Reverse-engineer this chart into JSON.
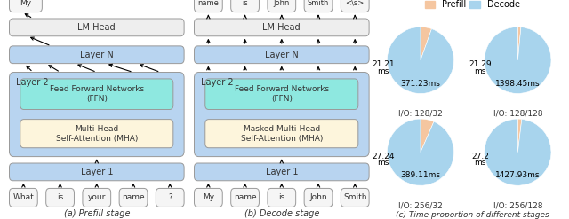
{
  "title_c": "(c) Time proportion of different stages",
  "title_a": "(a) Prefill stage",
  "title_b": "(b) Decode stage",
  "legend_prefill": "Prefill",
  "legend_decode": "Decode",
  "color_prefill": "#f5c6a0",
  "color_decode": "#a8d4ed",
  "color_layer_bg": "#b8d4f0",
  "color_ffn": "#8ee8e0",
  "color_mha": "#fdf5dc",
  "color_lmhead": "#eeeeee",
  "color_token": "#f5f5f5",
  "pie_data": [
    {
      "prefill": 21.21,
      "decode": 371.23,
      "io": "I/O: 128/32"
    },
    {
      "prefill": 21.29,
      "decode": 1398.45,
      "io": "I/O: 128/128"
    },
    {
      "prefill": 27.24,
      "decode": 389.11,
      "io": "I/O: 256/32"
    },
    {
      "prefill": 27.2,
      "decode": 1427.93,
      "io": "I/O: 256/128"
    }
  ],
  "prefill_tokens": [
    "What",
    "is",
    "your",
    "name",
    "?"
  ],
  "decode_input_tokens": [
    "My",
    "name",
    "is",
    "John",
    "Smith"
  ],
  "decode_output_tokens": [
    "name",
    "is",
    "John",
    "Smith",
    "<\\s>"
  ],
  "output_token_my": "My"
}
